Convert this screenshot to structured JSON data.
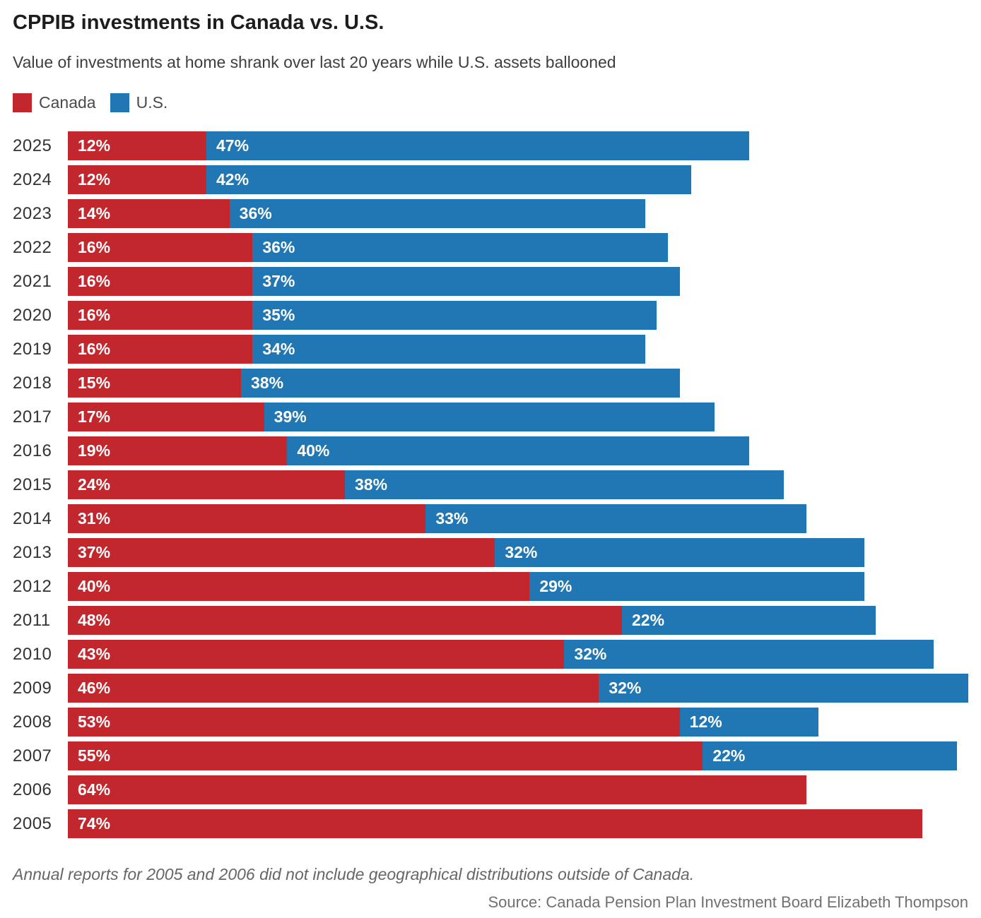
{
  "header": {
    "title": "CPPIB investments in Canada vs. U.S.",
    "subtitle": "Value of investments at home shrank over last 20 years while U.S. assets ballooned"
  },
  "legend": {
    "items": [
      {
        "label": "Canada",
        "color": "#c2272e"
      },
      {
        "label": "U.S.",
        "color": "#2077b4"
      }
    ]
  },
  "chart_data": {
    "type": "bar",
    "orientation": "horizontal",
    "stacked": true,
    "title": "CPPIB investments in Canada vs. U.S.",
    "subtitle": "Value of investments at home shrank over last 20 years while U.S. assets ballooned",
    "categories": [
      "2025",
      "2024",
      "2023",
      "2022",
      "2021",
      "2020",
      "2019",
      "2018",
      "2017",
      "2016",
      "2015",
      "2014",
      "2013",
      "2012",
      "2011",
      "2010",
      "2009",
      "2008",
      "2007",
      "2006",
      "2005"
    ],
    "series": [
      {
        "name": "Canada",
        "color": "#c2272e",
        "values": [
          12,
          12,
          14,
          16,
          16,
          16,
          16,
          15,
          17,
          19,
          24,
          31,
          37,
          40,
          48,
          43,
          46,
          53,
          55,
          64,
          74
        ]
      },
      {
        "name": "U.S.",
        "color": "#2077b4",
        "values": [
          47,
          42,
          36,
          36,
          37,
          35,
          34,
          38,
          39,
          40,
          38,
          33,
          32,
          29,
          22,
          32,
          32,
          12,
          22,
          null,
          null
        ]
      }
    ],
    "value_suffix": "%",
    "xlabel": "",
    "ylabel": "",
    "xmax": 78,
    "grid": false,
    "legend_position": "top",
    "value_labels": "inside-start"
  },
  "footer": {
    "note": "Annual reports for 2005 and 2006 did not include geographical distributions outside of Canada.",
    "source": "Source: Canada Pension Plan Investment Board Elizabeth Thompson"
  }
}
